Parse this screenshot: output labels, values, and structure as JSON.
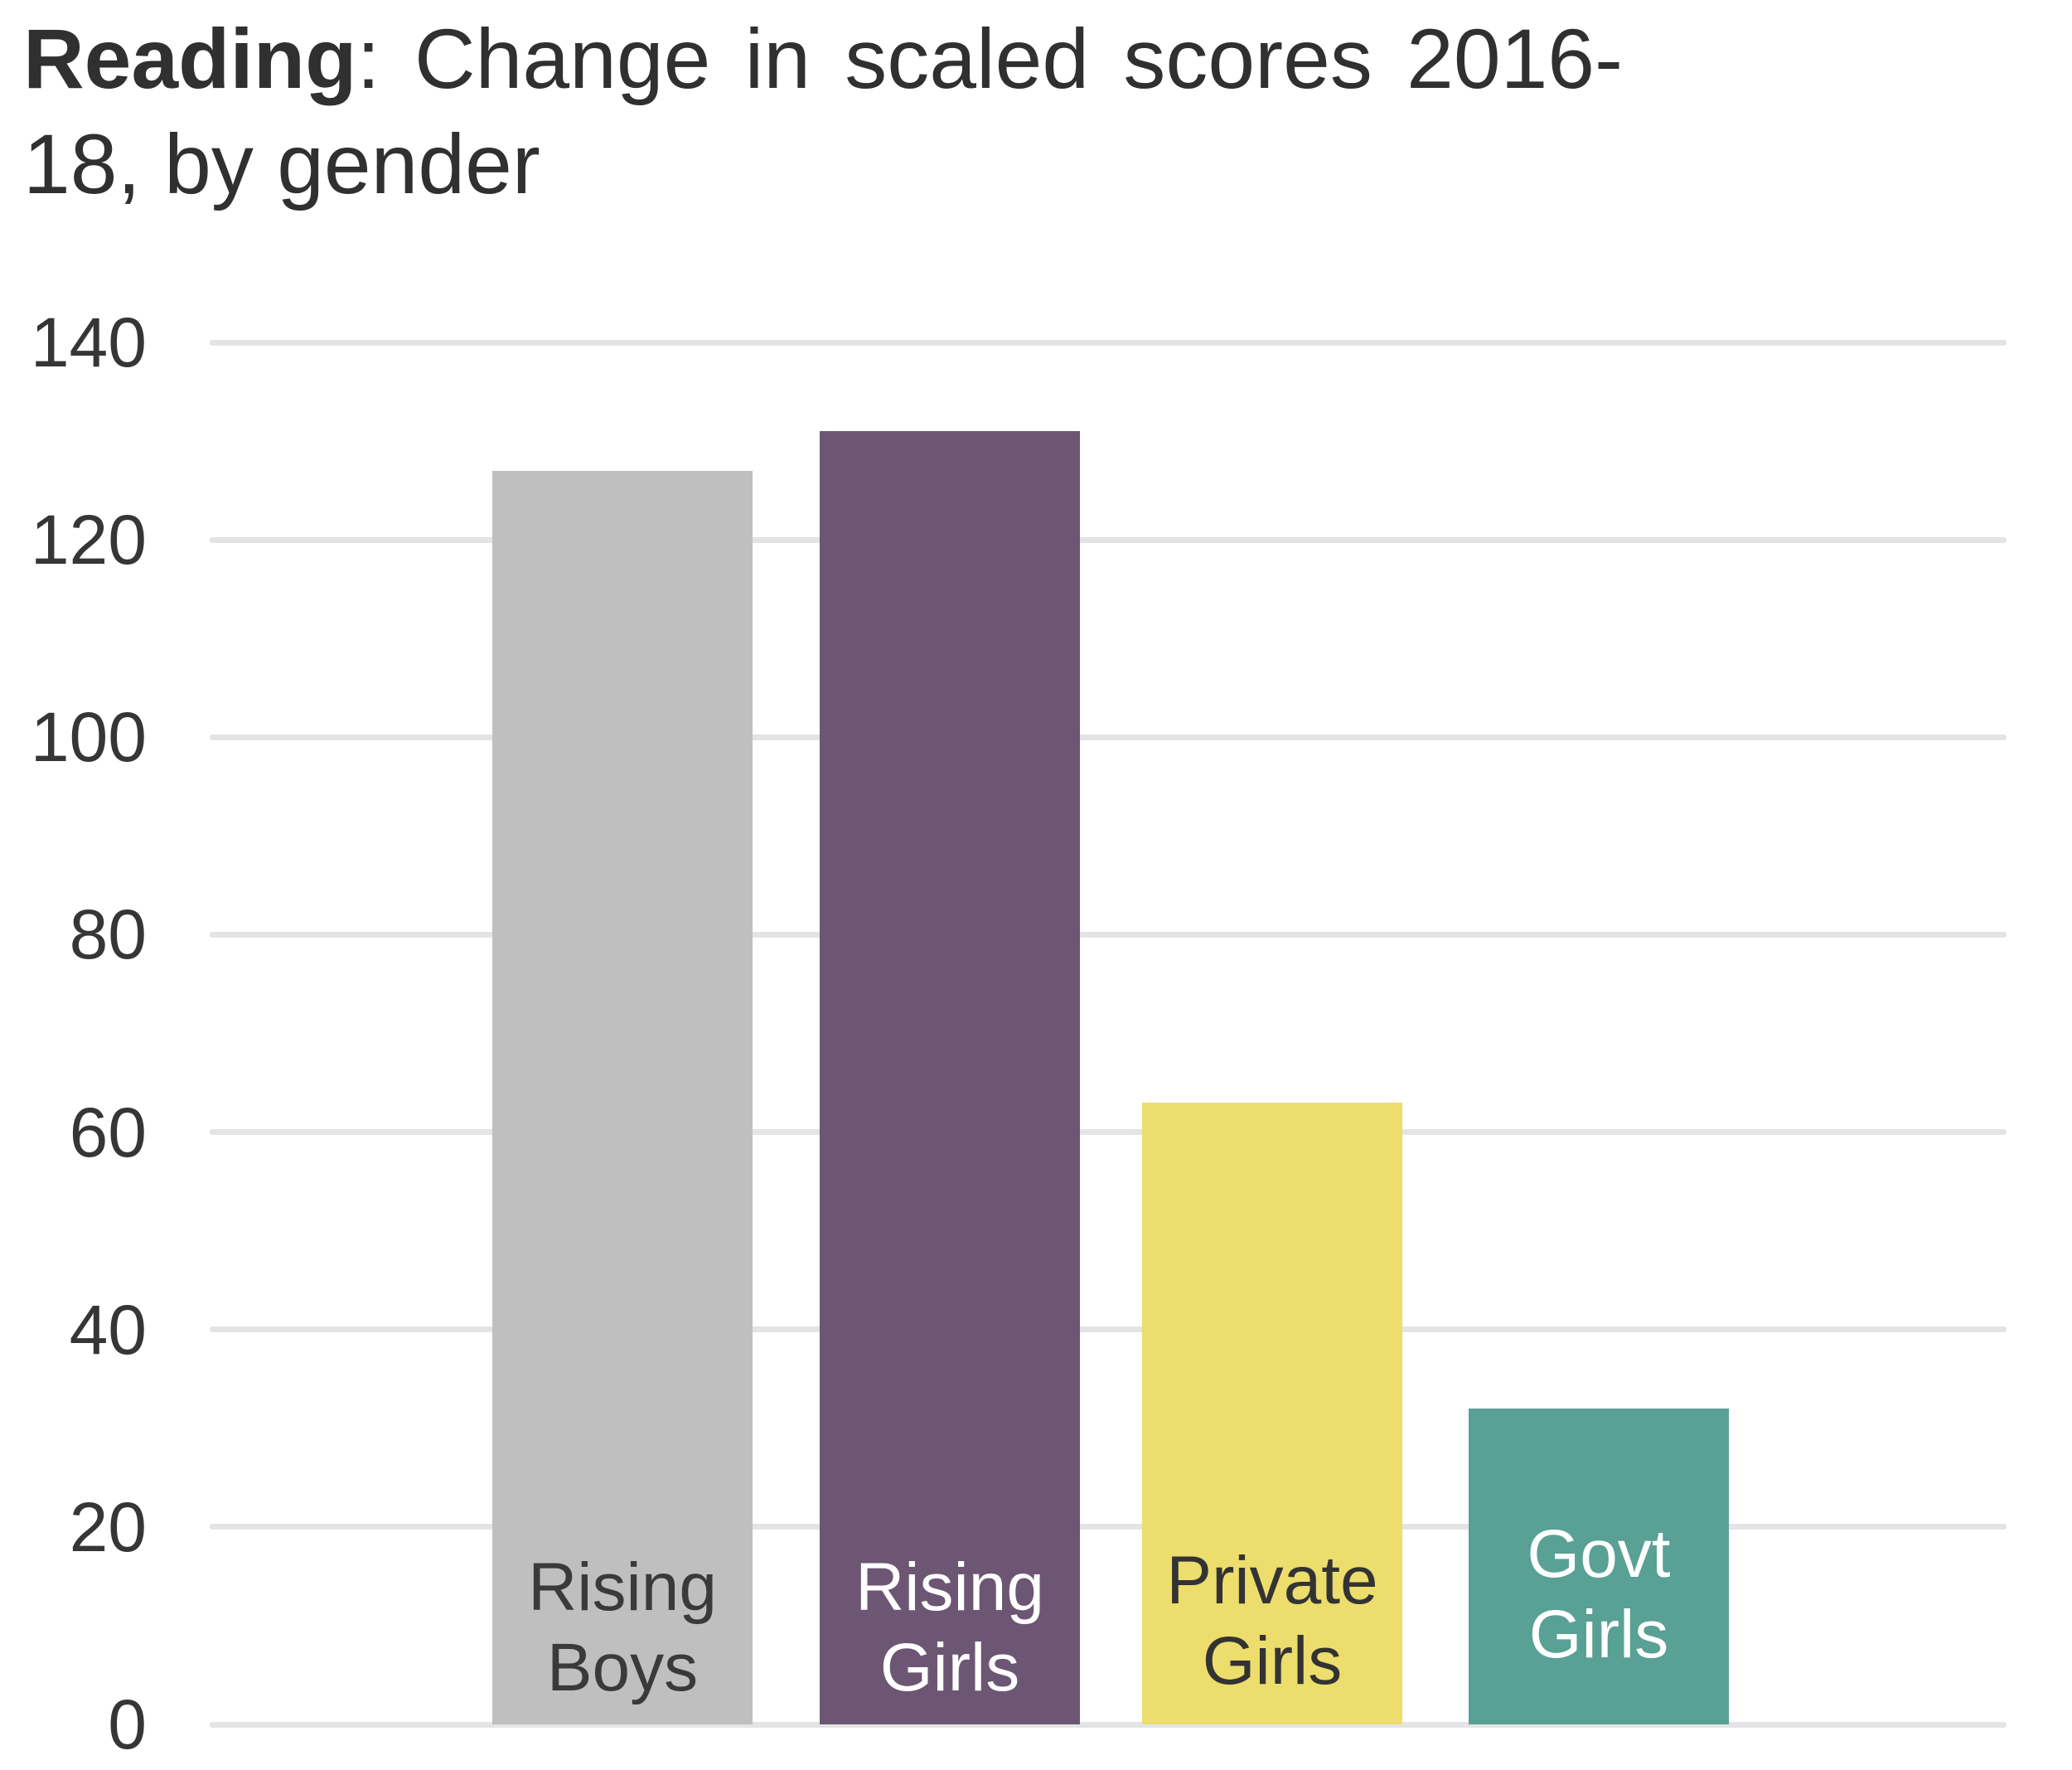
{
  "title": {
    "line1_bold": "Reading",
    "line1_rest": ": Change in scaled scores 2016-",
    "line2": "18, by gender",
    "full": "Reading: Change in scaled scores 2016-18, by gender"
  },
  "chart_data": {
    "type": "bar",
    "title": "Reading: Change in scaled scores 2016-18, by gender",
    "categories": [
      "Rising Boys",
      "Rising Girls",
      "Private Girls",
      "Govt Girls"
    ],
    "values": [
      127,
      131,
      63,
      32
    ],
    "bar_colors": [
      "#bfbfbf",
      "#6c5674",
      "#ecdd6c",
      "#59a095"
    ],
    "bar_label_colors": [
      "#3a3a3a",
      "#ffffff",
      "#333333",
      "#ffffff"
    ],
    "xlabel": "",
    "ylabel": "",
    "ylim": [
      0,
      140
    ],
    "yticks": [
      0,
      20,
      40,
      60,
      80,
      100,
      120,
      140
    ],
    "grid": true,
    "legend": false,
    "gridline_color": "#e4e4e6",
    "tick_label_color": "#363636",
    "background_color": "#ffffff"
  }
}
